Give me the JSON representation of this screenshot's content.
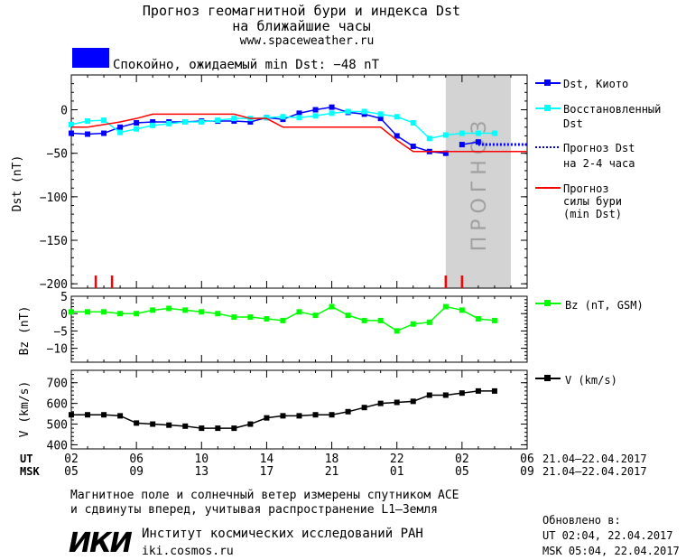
{
  "header": {
    "title_line1": "Прогноз геомагнитной бури и индекса Dst",
    "title_line2": "на ближайшие часы",
    "site": "www.spaceweather.ru",
    "status": "Спокойно, ожидаемый min Dst: −48 nT",
    "status_color": "#0000ff"
  },
  "forecast_label": "ПРОГНОЗ",
  "time_axis": {
    "ut_label": "UT",
    "msk_label": "MSK",
    "ut_ticks": [
      "02",
      "06",
      "10",
      "14",
      "18",
      "22",
      "02",
      "06"
    ],
    "msk_ticks": [
      "05",
      "09",
      "13",
      "17",
      "21",
      "01",
      "05",
      "09"
    ],
    "date_range_ut": "21.04–22.04.2017",
    "date_range_msk": "21.04–22.04.2017"
  },
  "footer": {
    "note_line1": "Магнитное поле и солнечный ветер измерены спутником ACE",
    "note_line2": "и сдвинуты вперед, учитывая распространение L1–Земля",
    "logo_text": "ИКИ",
    "institute": "Институт космических исследований РАН",
    "institute_url": "iki.cosmos.ru",
    "updated_label": "Обновлено в:",
    "updated_ut": "UT   02:04, 22.04.2017",
    "updated_msk": "MSK 05:04, 22.04.2017"
  },
  "chart_data": [
    {
      "type": "line",
      "ylabel": "Dst (nT)",
      "ylim": [
        -205,
        40
      ],
      "yticks": [
        0,
        -50,
        -100,
        -150,
        -200
      ],
      "x_unit": "hours since 02 UT 21.04",
      "xlim": [
        0,
        28
      ],
      "forecast_region": [
        23,
        27
      ],
      "series": [
        {
          "name": "Dst, Киото",
          "color": "#0000ff",
          "marker": "square",
          "x": [
            0,
            1,
            2,
            3,
            4,
            5,
            6,
            7,
            8,
            9,
            10,
            11,
            12,
            13,
            14,
            15,
            16,
            17,
            18,
            19,
            20,
            21,
            22,
            23
          ],
          "values": [
            -27,
            -28,
            -27,
            -20,
            -15,
            -14,
            -14,
            -14,
            -13,
            -13,
            -13,
            -14,
            -9,
            -11,
            -4,
            0,
            3,
            -3,
            -5,
            -10,
            -30,
            -42,
            -48,
            -50
          ]
        },
        {
          "name": "Dst, Киото (2)",
          "color": "#0000ff",
          "marker": "square",
          "x": [
            24,
            25
          ],
          "values": [
            -40,
            -37
          ]
        },
        {
          "name": "Восстановленный Dst",
          "color": "#00ffff",
          "marker": "square",
          "x": [
            0,
            1,
            2,
            3,
            4,
            5,
            6,
            7,
            8,
            9,
            10,
            11,
            12,
            13,
            14,
            15,
            16,
            17,
            18,
            19,
            20,
            21,
            22,
            23,
            24,
            25,
            26
          ],
          "values": [
            -17,
            -13,
            -12,
            -26,
            -22,
            -18,
            -16,
            -14,
            -14,
            -12,
            -10,
            -10,
            -9,
            -8,
            -9,
            -7,
            -4,
            -2,
            -2,
            -5,
            -8,
            -15,
            -33,
            -29,
            -27,
            -27,
            -27
          ]
        },
        {
          "name": "Прогноз Dst на 2-4 часа",
          "color": "#0000ff",
          "style": "dotted",
          "x": [
            25,
            28
          ],
          "values": [
            -40,
            -40
          ]
        },
        {
          "name": "Прогноз силы бури (min Dst)",
          "color": "#ff0000",
          "style": "step",
          "x": [
            0,
            1,
            3,
            4,
            5,
            6,
            7,
            8,
            9,
            10,
            11,
            12,
            13,
            17,
            18,
            19,
            20,
            21,
            22,
            23,
            28
          ],
          "values": [
            -20,
            -20,
            -14,
            -10,
            -5,
            -5,
            -5,
            -5,
            -5,
            -5,
            -10,
            -10,
            -20,
            -20,
            -20,
            -20,
            -35,
            -48,
            -48,
            -48,
            -48
          ]
        }
      ],
      "storm_marks_x": [
        1.5,
        2.5,
        23,
        24
      ]
    },
    {
      "type": "line",
      "ylabel": "Bz (nT)",
      "ylim": [
        -14,
        5
      ],
      "yticks": [
        5,
        0,
        -5,
        -10
      ],
      "series": [
        {
          "name": "Bz (nT, GSM)",
          "color": "#00ff00",
          "marker": "square",
          "x": [
            0,
            1,
            2,
            3,
            4,
            5,
            6,
            7,
            8,
            9,
            10,
            11,
            12,
            13,
            14,
            15,
            16,
            17,
            18,
            19,
            20,
            21,
            22,
            23,
            24,
            25,
            26
          ],
          "values": [
            0.5,
            0.5,
            0.5,
            0,
            0,
            1,
            1.5,
            1,
            0.5,
            0,
            -1,
            -1,
            -1.5,
            -2,
            0.5,
            -0.5,
            2,
            -0.5,
            -2,
            -2,
            -5,
            -3,
            -2.5,
            2,
            1,
            -1.5,
            -2
          ]
        }
      ]
    },
    {
      "type": "line",
      "ylabel": "V (km/s)",
      "ylim": [
        380,
        760
      ],
      "yticks": [
        400,
        500,
        600,
        700
      ],
      "series": [
        {
          "name": "V (km/s)",
          "color": "#000000",
          "marker": "square",
          "x": [
            0,
            1,
            2,
            3,
            4,
            5,
            6,
            7,
            8,
            9,
            10,
            11,
            12,
            13,
            14,
            15,
            16,
            17,
            18,
            19,
            20,
            21,
            22,
            23,
            24,
            25,
            26
          ],
          "values": [
            545,
            545,
            545,
            540,
            505,
            500,
            495,
            490,
            480,
            480,
            480,
            500,
            530,
            540,
            540,
            545,
            545,
            560,
            580,
            600,
            605,
            610,
            640,
            640,
            650,
            660,
            660
          ]
        }
      ]
    }
  ]
}
